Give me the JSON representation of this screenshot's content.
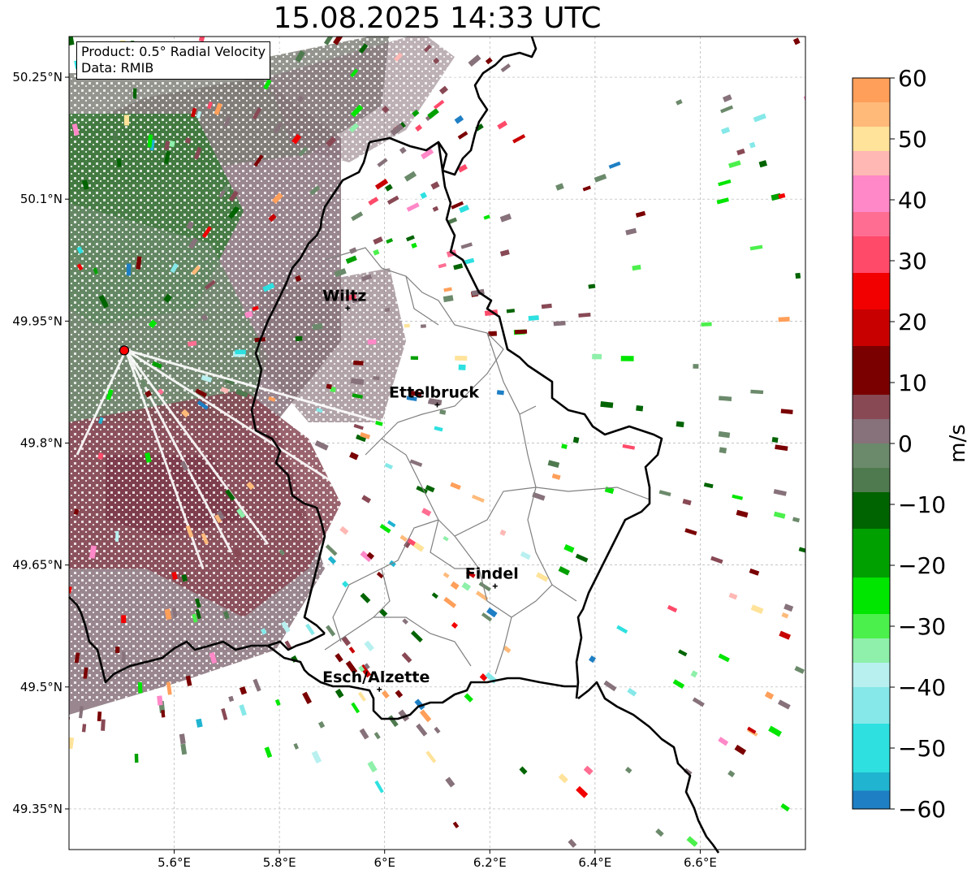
{
  "title": "15.08.2025 14:33 UTC",
  "info": {
    "product": "Product: 0.5° Radial Velocity",
    "data": "Data: RMIB"
  },
  "map": {
    "lon_range": [
      5.4,
      6.8
    ],
    "lat_range": [
      49.3,
      50.3
    ],
    "x_ticks": [
      {
        "value": 5.6,
        "label": "5.6°E"
      },
      {
        "value": 5.8,
        "label": "5.8°E"
      },
      {
        "value": 6.0,
        "label": "6°E"
      },
      {
        "value": 6.2,
        "label": "6.2°E"
      },
      {
        "value": 6.4,
        "label": "6.4°E"
      },
      {
        "value": 6.6,
        "label": "6.6°E"
      }
    ],
    "y_ticks": [
      {
        "value": 50.25,
        "label": "50.25°N"
      },
      {
        "value": 50.1,
        "label": "50.1°N"
      },
      {
        "value": 49.95,
        "label": "49.95°N"
      },
      {
        "value": 49.8,
        "label": "49.8°N"
      },
      {
        "value": 49.65,
        "label": "49.65°N"
      },
      {
        "value": 49.5,
        "label": "49.5°N"
      },
      {
        "value": 49.35,
        "label": "49.35°N"
      }
    ],
    "radar": {
      "lon": 5.505,
      "lat": 49.914
    },
    "cities": [
      {
        "name": "Wiltz",
        "lon": 5.93,
        "lat": 49.966
      },
      {
        "name": "Ettelbruck",
        "lon": 6.1,
        "lat": 49.847
      },
      {
        "name": "Findel",
        "lon": 6.21,
        "lat": 49.624
      },
      {
        "name": "Esch/Alzette",
        "lon": 5.99,
        "lat": 49.497
      }
    ],
    "colors": {
      "border": "#000000",
      "cantons": "#808080",
      "radar_marker": "#ff0000"
    }
  },
  "colorbar": {
    "label": "m/s",
    "min": -60,
    "max": 60,
    "ticks": [
      {
        "value": 60,
        "label": "60"
      },
      {
        "value": 50,
        "label": "50"
      },
      {
        "value": 40,
        "label": "40"
      },
      {
        "value": 30,
        "label": "30"
      },
      {
        "value": 20,
        "label": "20"
      },
      {
        "value": 10,
        "label": "10"
      },
      {
        "value": 0,
        "label": "0"
      },
      {
        "value": -10,
        "label": "−10"
      },
      {
        "value": -20,
        "label": "−20"
      },
      {
        "value": -30,
        "label": "−30"
      },
      {
        "value": -40,
        "label": "−40"
      },
      {
        "value": -50,
        "label": "−50"
      },
      {
        "value": -60,
        "label": "−60"
      }
    ],
    "stops": [
      {
        "from": 56,
        "to": 60,
        "color": "#ff9f5a"
      },
      {
        "from": 52,
        "to": 56,
        "color": "#ffba7a"
      },
      {
        "from": 48,
        "to": 52,
        "color": "#ffe39a"
      },
      {
        "from": 44,
        "to": 48,
        "color": "#ffb8b4"
      },
      {
        "from": 38,
        "to": 44,
        "color": "#ff88c8"
      },
      {
        "from": 34,
        "to": 38,
        "color": "#ff6e92"
      },
      {
        "from": 28,
        "to": 34,
        "color": "#ff4a6a"
      },
      {
        "from": 22,
        "to": 28,
        "color": "#f20000"
      },
      {
        "from": 16,
        "to": 22,
        "color": "#c80000"
      },
      {
        "from": 8,
        "to": 16,
        "color": "#7a0000"
      },
      {
        "from": 4,
        "to": 8,
        "color": "#884955"
      },
      {
        "from": 0,
        "to": 4,
        "color": "#87717a"
      },
      {
        "from": -4,
        "to": 0,
        "color": "#6b8a6b"
      },
      {
        "from": -8,
        "to": -4,
        "color": "#4f7a4f"
      },
      {
        "from": -14,
        "to": -8,
        "color": "#006400"
      },
      {
        "from": -22,
        "to": -14,
        "color": "#00a000"
      },
      {
        "from": -28,
        "to": -22,
        "color": "#00e600"
      },
      {
        "from": -32,
        "to": -28,
        "color": "#4cf04c"
      },
      {
        "from": -36,
        "to": -32,
        "color": "#8ef0aa"
      },
      {
        "from": -40,
        "to": -36,
        "color": "#b8f0f0"
      },
      {
        "from": -46,
        "to": -40,
        "color": "#86e8e8"
      },
      {
        "from": -54,
        "to": -46,
        "color": "#2ee0e0"
      },
      {
        "from": -57,
        "to": -54,
        "color": "#20b4d0"
      },
      {
        "from": -60,
        "to": -57,
        "color": "#1e7fc4"
      }
    ]
  }
}
